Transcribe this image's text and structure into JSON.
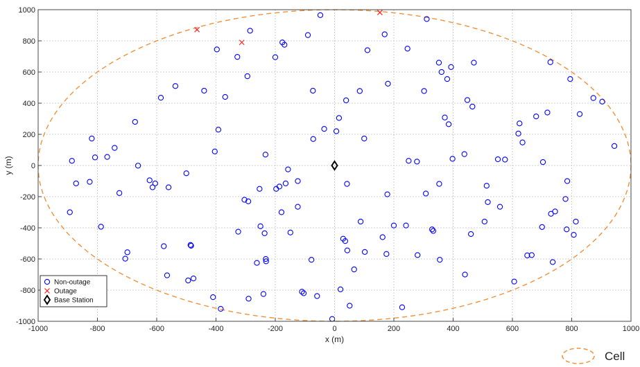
{
  "chart_data": {
    "type": "scatter",
    "xlabel": "x (m)",
    "ylabel": "y (m)",
    "xlim": [
      -1000,
      1000
    ],
    "ylim": [
      -1000,
      1000
    ],
    "xticks": [
      -1000,
      -800,
      -600,
      -400,
      -200,
      0,
      200,
      400,
      600,
      800,
      1000
    ],
    "yticks": [
      -1000,
      -800,
      -600,
      -400,
      -200,
      0,
      200,
      400,
      600,
      800,
      1000
    ],
    "grid": true,
    "legend_position": "bottom-left",
    "cell_boundary": {
      "label": "Cell",
      "center": [
        0,
        0
      ],
      "rx": 1000,
      "ry": 1000,
      "color": "#f0913a"
    },
    "series": [
      {
        "name": "Non-outage",
        "marker": "circle",
        "color": "#0000ff",
        "points": [
          [
            -886,
            30
          ],
          [
            -872,
            -115
          ],
          [
            -893,
            -300
          ],
          [
            -826,
            -105
          ],
          [
            -819,
            173
          ],
          [
            -808,
            52
          ],
          [
            -788,
            -393
          ],
          [
            -767,
            55
          ],
          [
            -742,
            113
          ],
          [
            -726,
            -177
          ],
          [
            -706,
            -598
          ],
          [
            -699,
            -557
          ],
          [
            -673,
            280
          ],
          [
            -663,
            -1
          ],
          [
            -624,
            -95
          ],
          [
            -614,
            -140
          ],
          [
            -605,
            -115
          ],
          [
            -586,
            435
          ],
          [
            -576,
            -518
          ],
          [
            -565,
            -705
          ],
          [
            -560,
            -140
          ],
          [
            -537,
            510
          ],
          [
            -500,
            -50
          ],
          [
            -494,
            -738
          ],
          [
            -486,
            -510
          ],
          [
            -484,
            -515
          ],
          [
            -476,
            -725
          ],
          [
            -440,
            480
          ],
          [
            -410,
            -845
          ],
          [
            -404,
            90
          ],
          [
            -397,
            745
          ],
          [
            -392,
            230
          ],
          [
            -384,
            -920
          ],
          [
            -369,
            440
          ],
          [
            -328,
            697
          ],
          [
            -325,
            -425
          ],
          [
            -304,
            -220
          ],
          [
            -294,
            573
          ],
          [
            -291,
            -230
          ],
          [
            -290,
            -855
          ],
          [
            -285,
            865
          ],
          [
            -262,
            -625
          ],
          [
            -253,
            -150
          ],
          [
            -250,
            -390
          ],
          [
            -240,
            -825
          ],
          [
            -236,
            -435
          ],
          [
            -233,
            70
          ],
          [
            -232,
            -600
          ],
          [
            -231,
            -615
          ],
          [
            -200,
            695
          ],
          [
            -197,
            -150
          ],
          [
            -186,
            -135
          ],
          [
            -179,
            -300
          ],
          [
            -176,
            790
          ],
          [
            -169,
            775
          ],
          [
            -165,
            -115
          ],
          [
            -157,
            -25
          ],
          [
            -149,
            -430
          ],
          [
            -124,
            -100
          ],
          [
            -124,
            -265
          ],
          [
            -110,
            -810
          ],
          [
            -104,
            -820
          ],
          [
            -90,
            837
          ],
          [
            -78,
            -605
          ],
          [
            -73,
            480
          ],
          [
            -72,
            170
          ],
          [
            -59,
            -838
          ],
          [
            -48,
            965
          ],
          [
            -35,
            235
          ],
          [
            -8,
            -985
          ],
          [
            6,
            220
          ],
          [
            15,
            305
          ],
          [
            20,
            -795
          ],
          [
            29,
            -470
          ],
          [
            36,
            -485
          ],
          [
            39,
            418
          ],
          [
            42,
            -118
          ],
          [
            43,
            -545
          ],
          [
            51,
            -900
          ],
          [
            66,
            -667
          ],
          [
            85,
            478
          ],
          [
            88,
            -360
          ],
          [
            100,
            173
          ],
          [
            102,
            -555
          ],
          [
            111,
            740
          ],
          [
            162,
            -460
          ],
          [
            169,
            842
          ],
          [
            175,
            -568
          ],
          [
            178,
            -185
          ],
          [
            180,
            525
          ],
          [
            200,
            -385
          ],
          [
            228,
            -910
          ],
          [
            241,
            -385
          ],
          [
            246,
            750
          ],
          [
            250,
            30
          ],
          [
            278,
            25
          ],
          [
            280,
            -575
          ],
          [
            302,
            478
          ],
          [
            308,
            -180
          ],
          [
            311,
            940
          ],
          [
            329,
            -410
          ],
          [
            333,
            -420
          ],
          [
            352,
            660
          ],
          [
            353,
            -118
          ],
          [
            355,
            -605
          ],
          [
            361,
            600
          ],
          [
            372,
            308
          ],
          [
            380,
            555
          ],
          [
            385,
            265
          ],
          [
            393,
            632
          ],
          [
            398,
            43
          ],
          [
            438,
            73
          ],
          [
            440,
            -700
          ],
          [
            448,
            420
          ],
          [
            460,
            -440
          ],
          [
            465,
            378
          ],
          [
            470,
            660
          ],
          [
            506,
            -360
          ],
          [
            513,
            -130
          ],
          [
            517,
            -235
          ],
          [
            551,
            40
          ],
          [
            558,
            -265
          ],
          [
            575,
            38
          ],
          [
            606,
            -745
          ],
          [
            620,
            205
          ],
          [
            624,
            270
          ],
          [
            634,
            148
          ],
          [
            650,
            -577
          ],
          [
            665,
            -575
          ],
          [
            680,
            315
          ],
          [
            700,
            -395
          ],
          [
            703,
            22
          ],
          [
            718,
            340
          ],
          [
            728,
            663
          ],
          [
            730,
            -310
          ],
          [
            736,
            -620
          ],
          [
            744,
            -295
          ],
          [
            779,
            -215
          ],
          [
            783,
            -410
          ],
          [
            785,
            -100
          ],
          [
            795,
            555
          ],
          [
            807,
            -445
          ],
          [
            814,
            -360
          ],
          [
            827,
            330
          ],
          [
            873,
            433
          ],
          [
            903,
            410
          ],
          [
            944,
            125
          ]
        ]
      },
      {
        "name": "Outage",
        "marker": "x",
        "color": "#ff2020",
        "points": [
          [
            -464,
            872
          ],
          [
            -313,
            790
          ],
          [
            153,
            982
          ]
        ]
      },
      {
        "name": "Base Station",
        "marker": "diamond",
        "color": "#000000",
        "points": [
          [
            0,
            0
          ]
        ]
      }
    ]
  }
}
